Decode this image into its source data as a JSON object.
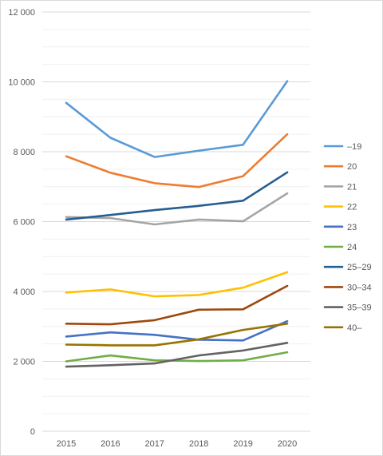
{
  "chart_data": {
    "type": "line",
    "title": "",
    "xlabel": "",
    "ylabel": "",
    "categories": [
      "2015",
      "2016",
      "2017",
      "2018",
      "2019",
      "2020"
    ],
    "ylim": [
      0,
      12000
    ],
    "yticks": [
      0,
      2000,
      4000,
      6000,
      8000,
      10000,
      12000
    ],
    "ytick_labels": [
      "0",
      "2 000",
      "4 000",
      "6 000",
      "8 000",
      "10 000",
      "12 000"
    ],
    "grid": "horizontal major and minor",
    "legend_position": "right",
    "series": [
      {
        "name": "–19",
        "color": "#5B9BD5",
        "values": [
          9400,
          8400,
          7850,
          8030,
          8200,
          10020
        ]
      },
      {
        "name": "20",
        "color": "#ED7D31",
        "values": [
          7870,
          7400,
          7100,
          6990,
          7300,
          8500
        ]
      },
      {
        "name": "21",
        "color": "#A5A5A5",
        "values": [
          6130,
          6100,
          5920,
          6060,
          6010,
          6810
        ]
      },
      {
        "name": "22",
        "color": "#FFC000",
        "values": [
          3970,
          4060,
          3860,
          3900,
          4110,
          4550
        ]
      },
      {
        "name": "23",
        "color": "#4472C4",
        "values": [
          2710,
          2830,
          2760,
          2620,
          2600,
          3150
        ]
      },
      {
        "name": "24",
        "color": "#70AD47",
        "values": [
          2000,
          2170,
          2030,
          2010,
          2030,
          2260
        ]
      },
      {
        "name": "25–29",
        "color": "#255E91",
        "values": [
          6060,
          6190,
          6330,
          6450,
          6600,
          7410
        ]
      },
      {
        "name": "30–34",
        "color": "#9E480E",
        "values": [
          3080,
          3060,
          3180,
          3480,
          3490,
          4160
        ]
      },
      {
        "name": "35–39",
        "color": "#636363",
        "values": [
          1850,
          1890,
          1940,
          2170,
          2310,
          2530
        ]
      },
      {
        "name": "40–",
        "color": "#997300",
        "values": [
          2480,
          2460,
          2460,
          2630,
          2900,
          3080
        ]
      }
    ]
  }
}
